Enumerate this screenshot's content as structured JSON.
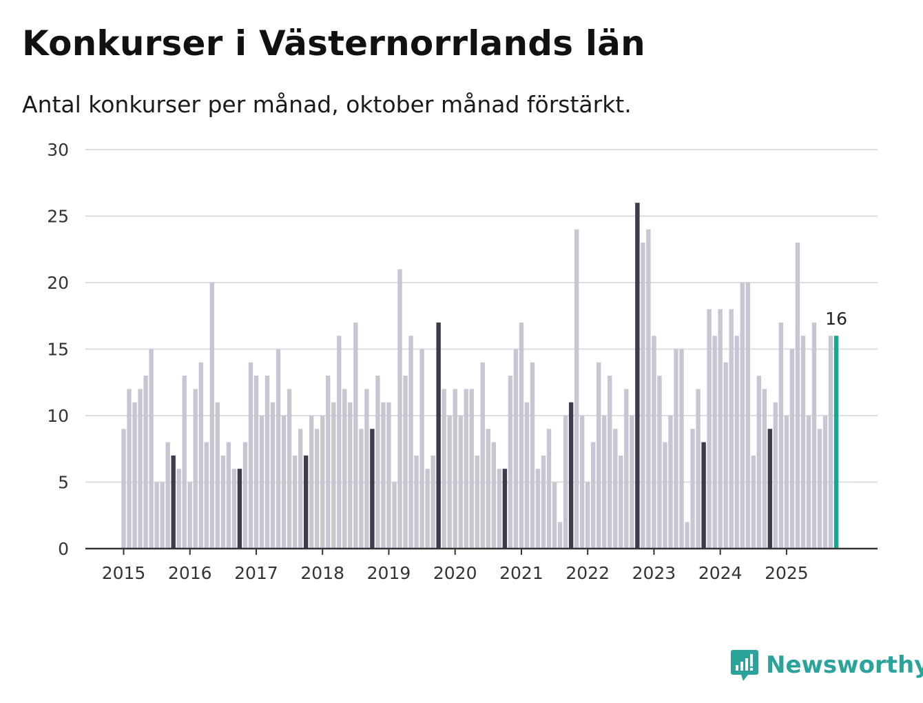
{
  "title": "Konkurser i Västernorrlands län",
  "subtitle": "Antal konkurser per månad, oktober månad förstärkt.",
  "brand": {
    "name": "Newsworthy",
    "icon": "newsworthy-logo-icon",
    "color": "#2aa39a"
  },
  "colors": {
    "bar": "#c7c6d2",
    "highlight": "#3e3c4c",
    "latest": "#18a594",
    "grid": "#dddddd",
    "axis": "#333333"
  },
  "chart_data": {
    "type": "bar",
    "title": "Konkurser i Västernorrlands län",
    "subtitle": "Antal konkurser per månad, oktober månad förstärkt.",
    "xlabel": "",
    "ylabel": "",
    "ylim": [
      0,
      30
    ],
    "yticks": [
      0,
      5,
      10,
      15,
      20,
      25,
      30
    ],
    "xticks": [
      "2015",
      "2016",
      "2017",
      "2018",
      "2019",
      "2020",
      "2021",
      "2022",
      "2023",
      "2024",
      "2025"
    ],
    "start": "2015-01",
    "highlight_month": 10,
    "latest_label": "16",
    "values": [
      9,
      12,
      11,
      12,
      13,
      15,
      5,
      5,
      8,
      7,
      6,
      13,
      5,
      12,
      14,
      8,
      20,
      11,
      7,
      8,
      6,
      6,
      8,
      14,
      13,
      10,
      13,
      11,
      15,
      10,
      12,
      7,
      9,
      7,
      10,
      9,
      10,
      13,
      11,
      16,
      12,
      11,
      17,
      9,
      12,
      9,
      13,
      11,
      11,
      5,
      21,
      13,
      16,
      7,
      15,
      6,
      7,
      17,
      12,
      10,
      12,
      10,
      12,
      12,
      7,
      14,
      9,
      8,
      6,
      6,
      13,
      15,
      17,
      11,
      14,
      6,
      7,
      9,
      5,
      2,
      10,
      11,
      24,
      10,
      5,
      8,
      14,
      10,
      13,
      9,
      7,
      12,
      10,
      26,
      23,
      24,
      16,
      13,
      8,
      10,
      15,
      15,
      2,
      9,
      12,
      8,
      18,
      16,
      18,
      14,
      18,
      16,
      20,
      20,
      7,
      13,
      12,
      9,
      11,
      17,
      10,
      15,
      23,
      16,
      10,
      17,
      9,
      10,
      16,
      16
    ]
  }
}
